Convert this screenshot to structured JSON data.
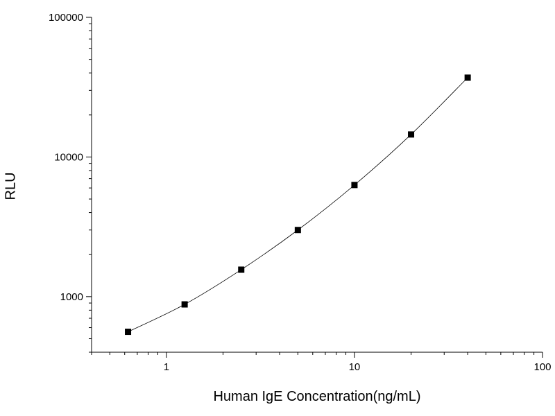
{
  "chart_data": {
    "type": "scatter",
    "title": "",
    "xlabel": "Human IgE Concentration(ng/mL)",
    "ylabel": "RLU",
    "xscale": "log",
    "yscale": "log",
    "xlim": [
      0.4,
      100
    ],
    "ylim": [
      400,
      100000
    ],
    "grid": false,
    "legend": "none",
    "marker": "square",
    "line": "smooth",
    "colors": {
      "marker": "#000000",
      "line": "#000000",
      "axis": "#000000"
    },
    "x_ticks": [
      {
        "value": 1,
        "label": "1"
      },
      {
        "value": 10,
        "label": "10"
      },
      {
        "value": 100,
        "label": "100"
      }
    ],
    "y_ticks": [
      {
        "value": 1000,
        "label": "1000"
      },
      {
        "value": 10000,
        "label": "10000"
      },
      {
        "value": 100000,
        "label": "100000"
      }
    ],
    "series": [
      {
        "x": [
          0.625,
          1.25,
          2.5,
          5,
          10,
          20,
          40
        ],
        "y": [
          560,
          880,
          1560,
          3000,
          6300,
          14500,
          37000
        ]
      }
    ]
  }
}
